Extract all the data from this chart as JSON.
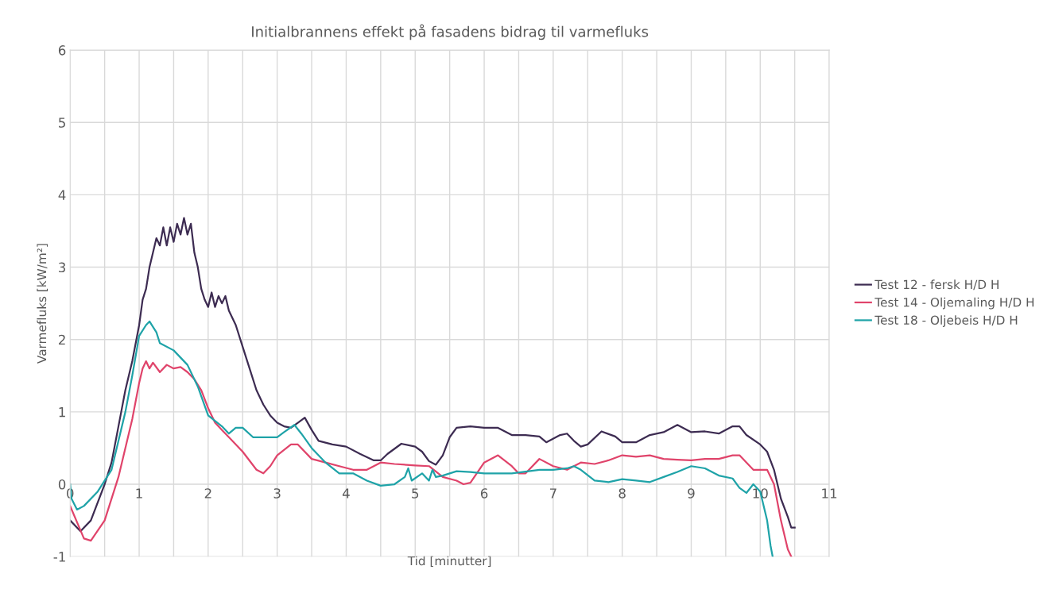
{
  "chart_data": {
    "type": "line",
    "title": "Initialbrannens effekt på fasadens bidrag til varmefluks",
    "xlabel": "Tid [minutter]",
    "ylabel": "Varmefluks [kW/m²]",
    "xlim": [
      0,
      11
    ],
    "ylim": [
      -1,
      6
    ],
    "xticks": [
      0,
      {
        "value": 0.5,
        "label": null
      },
      1,
      {
        "value": 1.5,
        "label": null
      },
      2,
      {
        "value": 2.5,
        "label": null
      },
      3,
      {
        "value": 3.5,
        "label": null
      },
      4,
      {
        "value": 4.5,
        "label": null
      },
      5,
      {
        "value": 5.5,
        "label": null
      },
      6,
      {
        "value": 6.5,
        "label": null
      },
      7,
      {
        "value": 7.5,
        "label": null
      },
      8,
      {
        "value": 8.5,
        "label": null
      },
      9,
      {
        "value": 9.5,
        "label": null
      },
      10,
      {
        "value": 10.5,
        "label": null
      },
      11
    ],
    "yticks": [
      -1,
      0,
      1,
      2,
      3,
      4,
      5,
      6
    ],
    "grid": true,
    "legend": "right",
    "marker": "none",
    "line_style": "solid",
    "series": [
      {
        "name": "Test 12 - fersk H/D H",
        "color": "#3d2c52",
        "x": [
          0,
          0.15,
          0.3,
          0.5,
          0.6,
          0.7,
          0.8,
          0.9,
          1.0,
          1.05,
          1.1,
          1.15,
          1.2,
          1.25,
          1.3,
          1.35,
          1.4,
          1.45,
          1.5,
          1.55,
          1.6,
          1.65,
          1.7,
          1.75,
          1.8,
          1.85,
          1.9,
          1.95,
          2.0,
          2.05,
          2.1,
          2.15,
          2.2,
          2.25,
          2.3,
          2.4,
          2.5,
          2.6,
          2.7,
          2.8,
          2.9,
          3.0,
          3.1,
          3.2,
          3.3,
          3.4,
          3.5,
          3.6,
          3.8,
          4.0,
          4.2,
          4.4,
          4.5,
          4.6,
          4.8,
          5.0,
          5.1,
          5.2,
          5.3,
          5.4,
          5.5,
          5.6,
          5.8,
          6.0,
          6.2,
          6.4,
          6.6,
          6.8,
          6.9,
          7.1,
          7.2,
          7.3,
          7.4,
          7.5,
          7.7,
          7.9,
          8.0,
          8.2,
          8.4,
          8.6,
          8.8,
          9.0,
          9.2,
          9.4,
          9.6,
          9.7,
          9.8,
          10.0,
          10.1,
          10.2,
          10.3,
          10.4,
          10.45,
          10.5
        ],
        "values": [
          -0.5,
          -0.65,
          -0.5,
          0.0,
          0.3,
          0.8,
          1.3,
          1.7,
          2.2,
          2.55,
          2.7,
          3.0,
          3.2,
          3.4,
          3.3,
          3.55,
          3.3,
          3.55,
          3.35,
          3.6,
          3.45,
          3.68,
          3.45,
          3.6,
          3.2,
          3.0,
          2.7,
          2.55,
          2.45,
          2.65,
          2.45,
          2.6,
          2.5,
          2.6,
          2.4,
          2.2,
          1.9,
          1.6,
          1.3,
          1.1,
          0.95,
          0.85,
          0.8,
          0.78,
          0.85,
          0.92,
          0.75,
          0.6,
          0.55,
          0.52,
          0.42,
          0.33,
          0.33,
          0.42,
          0.56,
          0.52,
          0.45,
          0.32,
          0.27,
          0.4,
          0.65,
          0.78,
          0.8,
          0.78,
          0.78,
          0.68,
          0.68,
          0.66,
          0.58,
          0.68,
          0.7,
          0.6,
          0.52,
          0.55,
          0.73,
          0.66,
          0.58,
          0.58,
          0.68,
          0.72,
          0.82,
          0.72,
          0.73,
          0.7,
          0.8,
          0.8,
          0.68,
          0.55,
          0.45,
          0.2,
          -0.2,
          -0.45,
          -0.6,
          -0.6
        ]
      },
      {
        "name": "Test 14 - Oljemaling H/D H",
        "color": "#e0446b",
        "x": [
          0,
          0.2,
          0.3,
          0.5,
          0.7,
          0.9,
          1.0,
          1.05,
          1.1,
          1.15,
          1.2,
          1.3,
          1.4,
          1.5,
          1.6,
          1.7,
          1.8,
          1.9,
          2.0,
          2.1,
          2.2,
          2.3,
          2.5,
          2.7,
          2.8,
          2.9,
          3.0,
          3.2,
          3.3,
          3.5,
          3.7,
          3.9,
          4.1,
          4.3,
          4.5,
          4.7,
          5.0,
          5.2,
          5.4,
          5.6,
          5.7,
          5.8,
          6.0,
          6.2,
          6.4,
          6.5,
          6.6,
          6.8,
          7.0,
          7.2,
          7.4,
          7.6,
          7.8,
          8.0,
          8.2,
          8.4,
          8.6,
          8.8,
          9.0,
          9.2,
          9.4,
          9.6,
          9.7,
          9.9,
          10.1,
          10.2,
          10.3,
          10.4,
          10.45
        ],
        "values": [
          -0.3,
          -0.75,
          -0.78,
          -0.5,
          0.1,
          0.9,
          1.4,
          1.6,
          1.7,
          1.6,
          1.68,
          1.55,
          1.65,
          1.6,
          1.62,
          1.55,
          1.45,
          1.3,
          1.05,
          0.85,
          0.75,
          0.65,
          0.45,
          0.2,
          0.15,
          0.25,
          0.4,
          0.55,
          0.55,
          0.35,
          0.3,
          0.25,
          0.2,
          0.2,
          0.3,
          0.28,
          0.26,
          0.25,
          0.1,
          0.05,
          0.0,
          0.02,
          0.3,
          0.4,
          0.25,
          0.15,
          0.15,
          0.35,
          0.25,
          0.2,
          0.3,
          0.28,
          0.33,
          0.4,
          0.38,
          0.4,
          0.35,
          0.34,
          0.33,
          0.35,
          0.35,
          0.4,
          0.4,
          0.2,
          0.2,
          0.0,
          -0.5,
          -0.9,
          -1.0
        ]
      },
      {
        "name": "Test 18 - Oljebeis H/D H",
        "color": "#1fa3a8",
        "x": [
          0,
          0.02,
          0.1,
          0.2,
          0.4,
          0.6,
          0.8,
          0.9,
          1.0,
          1.1,
          1.15,
          1.25,
          1.3,
          1.5,
          1.7,
          1.85,
          2.0,
          2.2,
          2.3,
          2.4,
          2.5,
          2.65,
          2.8,
          3.0,
          3.1,
          3.25,
          3.35,
          3.5,
          3.7,
          3.9,
          4.1,
          4.3,
          4.5,
          4.7,
          4.85,
          4.9,
          4.95,
          5.1,
          5.2,
          5.25,
          5.3,
          5.4,
          5.6,
          5.8,
          6.0,
          6.4,
          6.8,
          7.0,
          7.2,
          7.3,
          7.4,
          7.6,
          7.8,
          8.0,
          8.2,
          8.4,
          8.6,
          8.8,
          9.0,
          9.2,
          9.4,
          9.6,
          9.7,
          9.8,
          9.9,
          10.0,
          10.1,
          10.15,
          10.18
        ],
        "values": [
          0.0,
          -0.2,
          -0.35,
          -0.3,
          -0.1,
          0.2,
          1.0,
          1.5,
          2.05,
          2.2,
          2.25,
          2.1,
          1.95,
          1.85,
          1.65,
          1.35,
          0.95,
          0.8,
          0.7,
          0.78,
          0.78,
          0.65,
          0.65,
          0.65,
          0.72,
          0.82,
          0.7,
          0.5,
          0.3,
          0.15,
          0.15,
          0.05,
          -0.02,
          0.0,
          0.1,
          0.22,
          0.05,
          0.15,
          0.05,
          0.2,
          0.1,
          0.12,
          0.18,
          0.17,
          0.15,
          0.15,
          0.2,
          0.2,
          0.22,
          0.25,
          0.2,
          0.05,
          0.03,
          0.07,
          0.05,
          0.03,
          0.1,
          0.17,
          0.25,
          0.22,
          0.12,
          0.08,
          -0.05,
          -0.12,
          0.0,
          -0.1,
          -0.5,
          -0.85,
          -1.0
        ]
      }
    ]
  }
}
